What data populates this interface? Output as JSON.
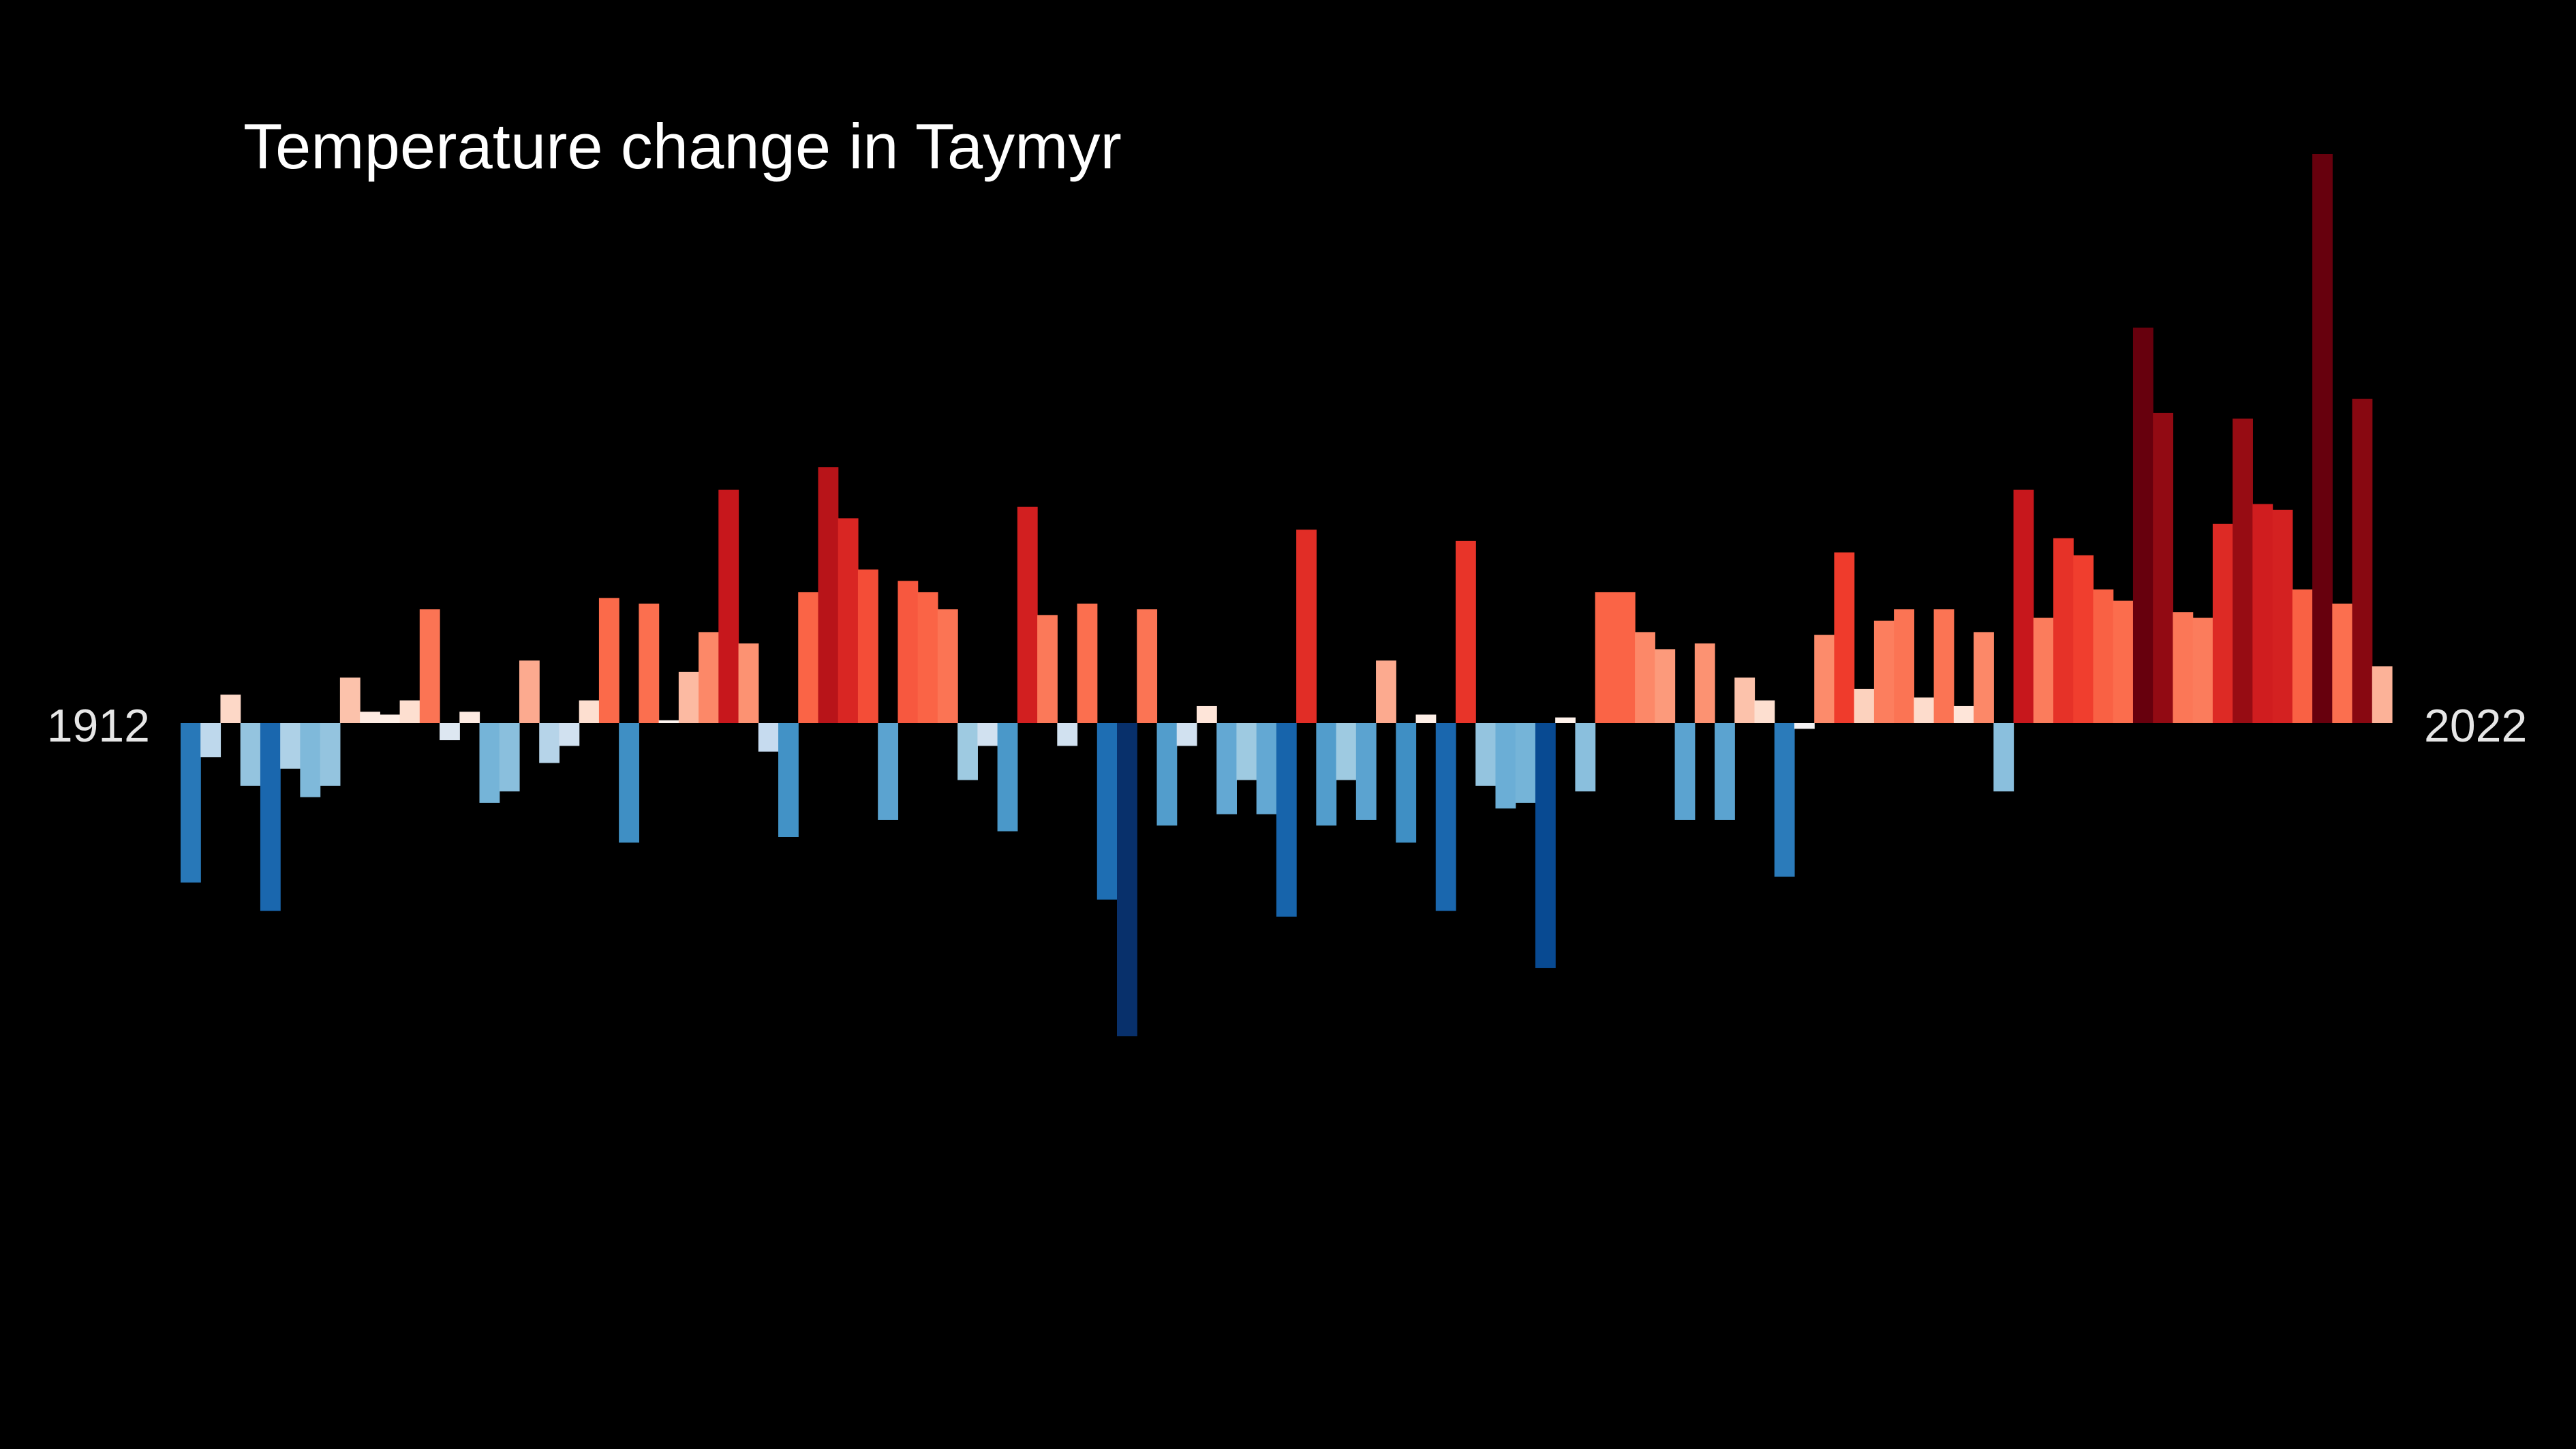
{
  "chart_data": {
    "type": "bar",
    "title": "Temperature change in Taymyr",
    "start_label": "1912",
    "end_label": "2022",
    "x": [
      1912,
      1913,
      1914,
      1915,
      1916,
      1917,
      1918,
      1919,
      1920,
      1921,
      1922,
      1923,
      1924,
      1925,
      1926,
      1927,
      1928,
      1929,
      1930,
      1931,
      1932,
      1933,
      1934,
      1935,
      1936,
      1937,
      1938,
      1939,
      1940,
      1941,
      1942,
      1943,
      1944,
      1945,
      1946,
      1947,
      1948,
      1949,
      1950,
      1951,
      1952,
      1953,
      1954,
      1955,
      1956,
      1957,
      1958,
      1959,
      1960,
      1961,
      1962,
      1963,
      1964,
      1965,
      1966,
      1967,
      1968,
      1969,
      1970,
      1971,
      1972,
      1973,
      1974,
      1975,
      1976,
      1977,
      1978,
      1979,
      1980,
      1981,
      1982,
      1983,
      1984,
      1985,
      1986,
      1987,
      1988,
      1989,
      1990,
      1991,
      1992,
      1993,
      1994,
      1995,
      1996,
      1997,
      1998,
      1999,
      2000,
      2001,
      2002,
      2003,
      2004,
      2005,
      2006,
      2007,
      2008,
      2009,
      2010,
      2011,
      2012,
      2013,
      2014,
      2015,
      2016,
      2017,
      2018,
      2019,
      2020,
      2021,
      2022
    ],
    "values": [
      -2.8,
      -0.6,
      0.5,
      -1.1,
      -3.3,
      -0.8,
      -1.3,
      -1.1,
      0.8,
      0.2,
      0.15,
      0.4,
      2.0,
      -0.3,
      0.2,
      -1.4,
      -1.2,
      1.1,
      -0.7,
      -0.4,
      0.4,
      2.2,
      -2.1,
      2.1,
      0.05,
      0.9,
      1.6,
      4.1,
      1.4,
      -0.5,
      -2.0,
      2.3,
      4.5,
      3.6,
      2.7,
      -1.7,
      2.5,
      2.3,
      2.0,
      -1.0,
      -0.4,
      -1.9,
      3.8,
      1.9,
      -0.4,
      2.1,
      -3.1,
      -5.5,
      2.0,
      -1.8,
      -0.4,
      0.3,
      -1.6,
      -1.0,
      -1.6,
      -3.4,
      3.4,
      -1.8,
      -1.0,
      -1.7,
      1.1,
      -2.1,
      0.15,
      -3.3,
      3.2,
      -1.1,
      -1.5,
      -1.4,
      -4.3,
      0.1,
      -1.2,
      2.3,
      2.3,
      1.6,
      1.3,
      -1.7,
      1.4,
      -1.7,
      0.8,
      0.4,
      -2.7,
      -0.1,
      1.55,
      3.0,
      0.6,
      1.8,
      2.0,
      0.45,
      2.0,
      0.3,
      1.6,
      -1.2,
      4.1,
      1.85,
      3.25,
      2.95,
      2.35,
      2.15,
      6.95,
      5.45,
      1.95,
      1.85,
      3.5,
      5.35,
      3.85,
      3.75,
      2.35,
      10.0,
      2.1,
      5.7,
      1.0
    ]
  }
}
